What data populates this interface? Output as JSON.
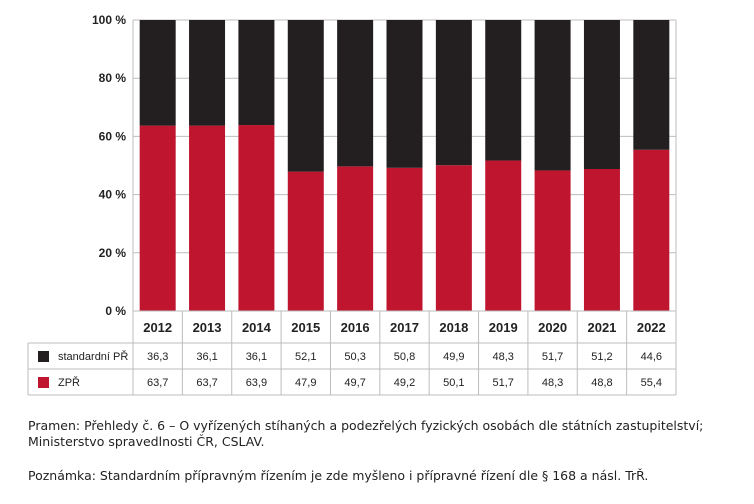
{
  "chart_data": {
    "type": "bar",
    "stacked": true,
    "categories": [
      "2012",
      "2013",
      "2014",
      "2015",
      "2016",
      "2017",
      "2018",
      "2019",
      "2020",
      "2021",
      "2022"
    ],
    "series": [
      {
        "name": "ZPŘ",
        "color": "#c0152f",
        "values": [
          63.7,
          63.7,
          63.9,
          47.9,
          49.7,
          49.2,
          50.1,
          51.7,
          48.3,
          48.8,
          55.4
        ],
        "labels": [
          "63,7",
          "63,7",
          "63,9",
          "47,9",
          "49,7",
          "49,2",
          "50,1",
          "51,7",
          "48,3",
          "48,8",
          "55,4"
        ]
      },
      {
        "name": "standardní PŘ",
        "color": "#231f20",
        "values": [
          36.3,
          36.1,
          36.1,
          52.1,
          50.3,
          50.8,
          49.9,
          48.3,
          51.7,
          51.2,
          44.6
        ],
        "labels": [
          "36,3",
          "36,1",
          "36,1",
          "52,1",
          "50,3",
          "50,8",
          "49,9",
          "48,3",
          "51,7",
          "51,2",
          "44,6"
        ]
      }
    ],
    "ylim": [
      0,
      100
    ],
    "yticks": [
      "0 %",
      "20 %",
      "40 %",
      "60 %",
      "80 %",
      "100 %"
    ],
    "grid": true,
    "legend": "data-table-below"
  },
  "source_text": "Pramen: Přehledy č. 6 – O vyřízených stíhaných a podezřelých fyzických osobách dle státních zastupitelství; Ministerstvo spravedlnosti ČR, CSLAV.",
  "note_text": "Poznámka: Standardním přípravným řízením je zde myšleno i přípravné řízení dle § 168 a násl. TrŘ."
}
